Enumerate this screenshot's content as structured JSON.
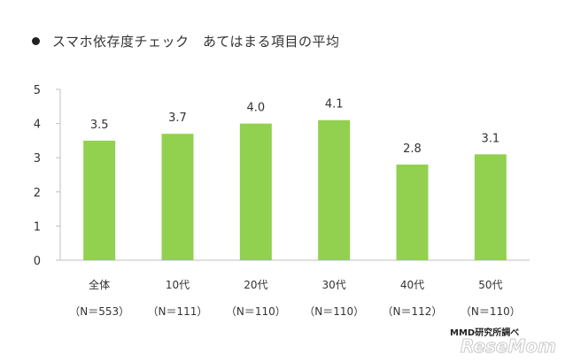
{
  "page": {
    "title": "スマホ依存度チェック　あてはまる項目の平均",
    "source": "MMD研究所調べ",
    "logo_text": "ReseMom"
  },
  "chart_data": {
    "type": "bar",
    "title": "スマホ依存度チェック　あてはまる項目の平均",
    "categories": [
      "全体",
      "10代",
      "20代",
      "30代",
      "40代",
      "50代"
    ],
    "sublabels": [
      "（N＝553）",
      "（N＝111）",
      "（N＝110）",
      "（N＝110）",
      "（N＝112）",
      "（N＝110）"
    ],
    "values": [
      3.5,
      3.7,
      4.0,
      4.1,
      2.8,
      3.1
    ],
    "value_labels": [
      "3.5",
      "3.7",
      "4.0",
      "4.1",
      "2.8",
      "3.1"
    ],
    "ylim": [
      0,
      5
    ],
    "yticks": [
      0,
      1,
      2,
      3,
      4,
      5
    ],
    "grid": false,
    "legend": "none",
    "bar_color": "#92d050"
  }
}
